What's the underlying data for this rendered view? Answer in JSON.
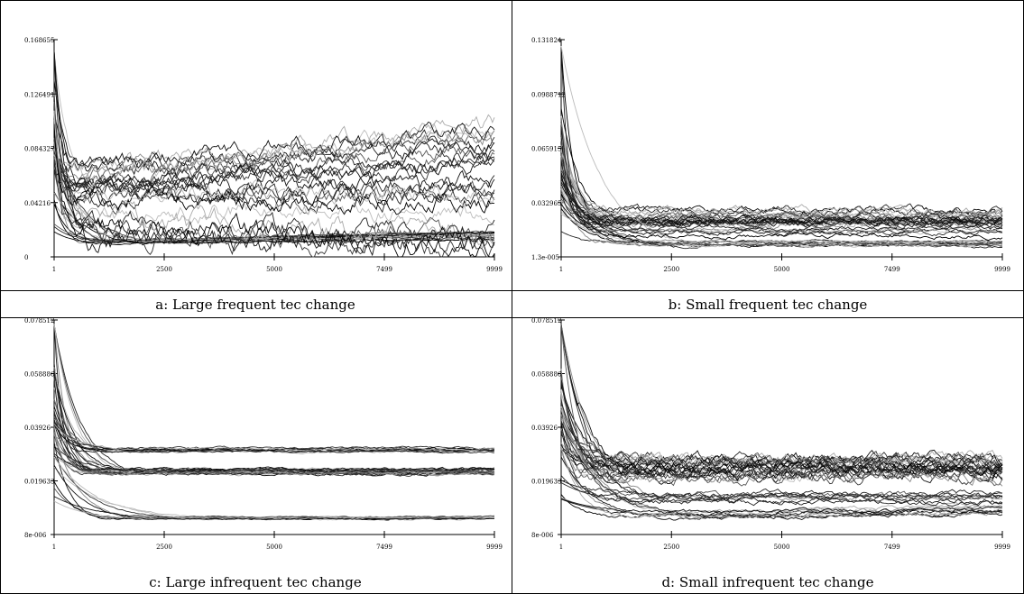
{
  "figure": {
    "panels": [
      {
        "id": "a",
        "caption": "a: Large frequent tec change",
        "chart_data": {
          "type": "line",
          "x_ticks": [
            "1",
            "2500",
            "5000",
            "7499",
            "9999"
          ],
          "y_ticks": [
            "0",
            "0.04216",
            "0.084327",
            "0.126491",
            "0.168655"
          ],
          "xlim": [
            1,
            9999
          ],
          "ylim": [
            0,
            0.168655
          ],
          "grid": false,
          "legend": false,
          "series_count": 40,
          "pattern": {
            "spike": 0.16,
            "groups": [
              {
                "count": 12,
                "level": 0.063,
                "drift": 0.025,
                "noise": 0.009,
                "rise": 600
              },
              {
                "count": 14,
                "level": 0.012,
                "drift": 0.005,
                "noise": 0.0012,
                "rise": 1400
              },
              {
                "count": 8,
                "level": 0.045,
                "drift": 0.0,
                "noise": 0.01,
                "rise": 500
              },
              {
                "count": 6,
                "level": 0.025,
                "drift": -0.01,
                "noise": 0.012,
                "rise": 800
              }
            ]
          }
        }
      },
      {
        "id": "b",
        "caption": "b: Small frequent tec change",
        "chart_data": {
          "type": "line",
          "x_ticks": [
            "1",
            "2500",
            "5000",
            "7499",
            "9999"
          ],
          "y_ticks": [
            "1.3e-005",
            "0.032965",
            "0.0659155",
            "0.0988712",
            "0.131824"
          ],
          "xlim": [
            1,
            9999
          ],
          "ylim": [
            1.3e-05,
            0.131824
          ],
          "grid": false,
          "legend": false,
          "series_count": 44,
          "pattern": {
            "spike": 0.128,
            "groups": [
              {
                "count": 26,
                "level": 0.024,
                "drift": 0.0,
                "noise": 0.0035,
                "rise": 900
              },
              {
                "count": 12,
                "level": 0.008,
                "drift": 0.0,
                "noise": 0.0012,
                "rise": 1800
              },
              {
                "count": 6,
                "level": 0.015,
                "drift": 0.0,
                "noise": 0.002,
                "rise": 1200
              }
            ]
          }
        }
      },
      {
        "id": "c",
        "caption": "c: Large infrequent tec change",
        "chart_data": {
          "type": "line",
          "x_ticks": [
            "1",
            "2500",
            "5000",
            "7499",
            "9999"
          ],
          "y_ticks": [
            "8e-006",
            "0.019633",
            "0.03926",
            "0.058886",
            "0.078512"
          ],
          "xlim": [
            1,
            9999
          ],
          "ylim": [
            8e-06,
            0.078512
          ],
          "grid": false,
          "legend": false,
          "series_count": 44,
          "pattern": {
            "spike": 0.077,
            "groups": [
              {
                "count": 24,
                "level": 0.023,
                "drift": 0.0,
                "noise": 0.0008,
                "rise": 1200
              },
              {
                "count": 10,
                "level": 0.031,
                "drift": 0.0,
                "noise": 0.0006,
                "rise": 1000
              },
              {
                "count": 10,
                "level": 0.006,
                "drift": 0.0,
                "noise": 0.0004,
                "rise": 2200
              }
            ]
          }
        }
      },
      {
        "id": "d",
        "caption": "d: Small infrequent tec change",
        "chart_data": {
          "type": "line",
          "x_ticks": [
            "1",
            "2500",
            "5000",
            "7499",
            "9999"
          ],
          "y_ticks": [
            "8e-006",
            "0.019633",
            "0.03926",
            "0.058886",
            "0.078512"
          ],
          "xlim": [
            1,
            9999
          ],
          "ylim": [
            8e-06,
            0.078512
          ],
          "grid": false,
          "legend": false,
          "series_count": 44,
          "pattern": {
            "spike": 0.077,
            "groups": [
              {
                "count": 26,
                "level": 0.024,
                "drift": 0.0,
                "noise": 0.003,
                "rise": 1000
              },
              {
                "count": 10,
                "level": 0.007,
                "drift": 0.002,
                "noise": 0.001,
                "rise": 2500
              },
              {
                "count": 8,
                "level": 0.013,
                "drift": 0.0,
                "noise": 0.0015,
                "rise": 1600
              }
            ]
          }
        }
      }
    ]
  }
}
